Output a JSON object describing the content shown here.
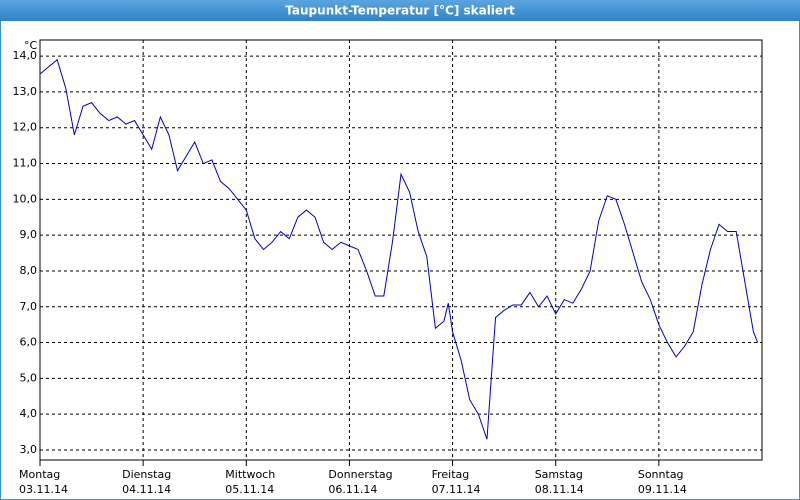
{
  "chart_data": {
    "type": "line",
    "title": "Taupunkt-Temperatur [°C] skaliert",
    "y_label": "°C",
    "x": [
      0,
      2,
      4,
      6,
      8,
      10,
      12,
      14,
      16,
      18,
      20,
      22,
      24,
      26,
      28,
      30,
      32,
      34,
      36,
      38,
      40,
      42,
      44,
      46,
      48,
      50,
      52,
      54,
      56,
      58,
      60,
      62,
      64,
      66,
      68,
      70,
      72,
      74,
      76,
      78,
      80,
      82,
      84,
      86,
      88,
      90,
      92,
      94,
      95,
      96,
      98,
      100,
      102,
      104,
      106,
      108,
      110,
      112,
      114,
      116,
      118,
      120,
      122,
      124,
      126,
      128,
      130,
      132,
      134,
      136,
      138,
      140,
      142,
      144,
      146,
      148,
      150,
      152,
      154,
      156,
      158,
      160,
      162,
      164,
      166,
      167
    ],
    "series": [
      {
        "name": "Taupunkt-Temperatur",
        "color": "#0000c0",
        "values": [
          13.5,
          13.7,
          13.9,
          13.1,
          11.8,
          12.6,
          12.7,
          12.4,
          12.2,
          12.3,
          12.1,
          12.2,
          11.8,
          11.4,
          12.3,
          11.8,
          10.8,
          11.2,
          11.6,
          11.0,
          11.1,
          10.5,
          10.3,
          10.0,
          9.7,
          8.9,
          8.6,
          8.8,
          9.1,
          8.9,
          9.5,
          9.7,
          9.5,
          8.8,
          8.6,
          8.8,
          8.7,
          8.6,
          8.0,
          7.3,
          7.3,
          8.8,
          10.7,
          10.2,
          9.1,
          8.4,
          6.4,
          6.6,
          7.1,
          6.3,
          5.5,
          4.4,
          4.0,
          3.3,
          6.7,
          6.9,
          7.05,
          7.05,
          7.4,
          7.0,
          7.3,
          6.8,
          7.2,
          7.1,
          7.5,
          8.0,
          9.4,
          10.1,
          10.0,
          9.3,
          8.5,
          7.7,
          7.2,
          6.5,
          6.0,
          5.6,
          5.9,
          6.3,
          7.6,
          8.6,
          9.3,
          9.1,
          9.1,
          7.7,
          6.3,
          6.0
        ]
      }
    ],
    "xlim": [
      0,
      168
    ],
    "xticks": [
      {
        "value": 0,
        "label": "Montag",
        "date": "03.11.14"
      },
      {
        "value": 24,
        "label": "Dienstag",
        "date": "04.11.14"
      },
      {
        "value": 48,
        "label": "Mittwoch",
        "date": "05.11.14"
      },
      {
        "value": 72,
        "label": "Donnerstag",
        "date": "06.11.14"
      },
      {
        "value": 96,
        "label": "Freitag",
        "date": "07.11.14"
      },
      {
        "value": 120,
        "label": "Samstag",
        "date": "08.11.14"
      },
      {
        "value": 144,
        "label": "Sonntag",
        "date": "09.11.14"
      }
    ],
    "ylim": [
      2.72,
      14.45
    ],
    "yticks": [
      {
        "value": 3,
        "label": "3,0"
      },
      {
        "value": 4,
        "label": "4,0"
      },
      {
        "value": 5,
        "label": "5,0"
      },
      {
        "value": 6,
        "label": "6,0"
      },
      {
        "value": 7,
        "label": "7,0"
      },
      {
        "value": 8,
        "label": "8,0"
      },
      {
        "value": 9,
        "label": "9,0"
      },
      {
        "value": 10,
        "label": "10,0"
      },
      {
        "value": 11,
        "label": "11,0"
      },
      {
        "value": 12,
        "label": "12,0"
      },
      {
        "value": 13,
        "label": "13,0"
      },
      {
        "value": 14,
        "label": "14,0"
      }
    ],
    "grid": true
  }
}
